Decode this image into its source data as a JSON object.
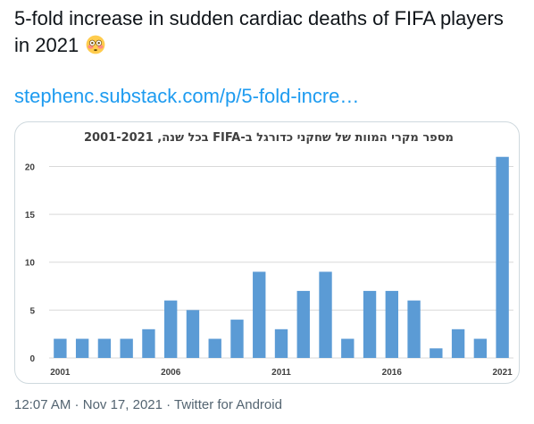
{
  "tweet": {
    "text": "5-fold increase in sudden cardiac deaths of FIFA players in 2021",
    "emoji": "flushed-face-emoji",
    "link": "stephenc.substack.com/p/5-fold-incre…"
  },
  "meta": {
    "time": "12:07 AM",
    "sep1": " · ",
    "date": "Nov 17, 2021",
    "sep2": " · ",
    "source": "Twitter for Android"
  },
  "colors": {
    "bar": "#5b9bd5",
    "link": "#1d9bf0",
    "grid": "#d9d9d9",
    "title": "#404040"
  },
  "chart_data": {
    "type": "bar",
    "title": "מספר מקרי המוות של שחקני כדורגל ב-FIFA בכל שנה, 2001-2021",
    "categories": [
      "2001",
      "2002",
      "2003",
      "2004",
      "2005",
      "2006",
      "2007",
      "2008",
      "2009",
      "2010",
      "2011",
      "2012",
      "2013",
      "2014",
      "2015",
      "2016",
      "2017",
      "2018",
      "2019",
      "2020",
      "2021"
    ],
    "values": [
      2,
      2,
      2,
      2,
      3,
      6,
      5,
      2,
      4,
      9,
      3,
      7,
      9,
      2,
      7,
      7,
      6,
      1,
      3,
      2,
      21
    ],
    "x_tick_labels": [
      "2001",
      "2006",
      "2011",
      "2016",
      "2021"
    ],
    "y_ticks": [
      "0",
      "5",
      "10",
      "15",
      "20"
    ],
    "ylim": [
      0,
      22
    ],
    "grid": true,
    "xlabel": "",
    "ylabel": ""
  }
}
